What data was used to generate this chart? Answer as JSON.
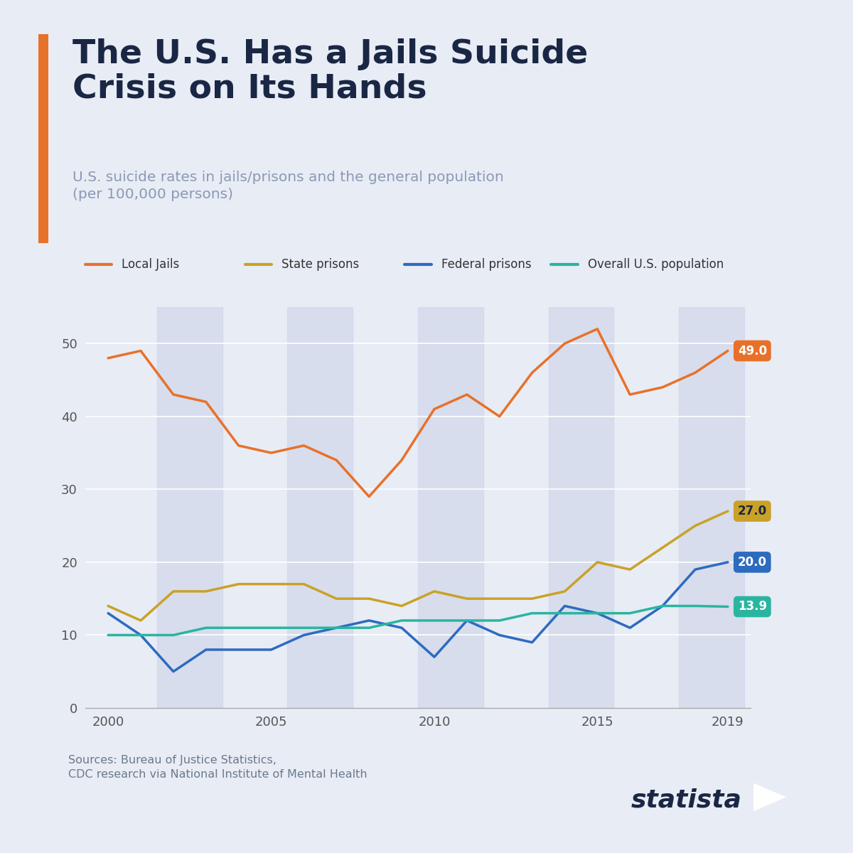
{
  "title": "The U.S. Has a Jails Suicide\nCrisis on Its Hands",
  "subtitle": "U.S. suicide rates in jails/prisons and the general population\n(per 100,000 persons)",
  "background_color": "#e8ecf5",
  "title_color": "#1a2744",
  "subtitle_color": "#8a9ab5",
  "accent_bar_color": "#e8712a",
  "years": [
    2000,
    2001,
    2002,
    2003,
    2004,
    2005,
    2006,
    2007,
    2008,
    2009,
    2010,
    2011,
    2012,
    2013,
    2014,
    2015,
    2016,
    2017,
    2018,
    2019
  ],
  "local_jails": [
    48,
    49,
    43,
    42,
    36,
    35,
    36,
    34,
    29,
    34,
    41,
    43,
    40,
    46,
    50,
    52,
    43,
    44,
    46,
    49
  ],
  "state_prisons": [
    14,
    12,
    16,
    16,
    17,
    17,
    17,
    15,
    15,
    14,
    16,
    15,
    15,
    15,
    16,
    20,
    19,
    22,
    25,
    27
  ],
  "federal_prisons": [
    13,
    10,
    5,
    8,
    8,
    8,
    10,
    11,
    12,
    11,
    7,
    12,
    10,
    9,
    14,
    13,
    11,
    14,
    19,
    20
  ],
  "us_population": [
    10,
    10,
    10,
    11,
    11,
    11,
    11,
    11,
    11,
    12,
    12,
    12,
    12,
    13,
    13,
    13,
    13,
    14,
    14,
    13.9
  ],
  "local_jails_color": "#e8712a",
  "state_prisons_color": "#c9a227",
  "federal_prisons_color": "#2d6bbf",
  "us_population_color": "#2ab5a0",
  "local_jails_label": "Local Jails",
  "state_prisons_label": "State prisons",
  "federal_prisons_label": "Federal prisons",
  "us_population_label": "Overall U.S. population",
  "end_labels": [
    "49.0",
    "27.0",
    "20.0",
    "13.9"
  ],
  "end_label_text_colors": [
    "white",
    "#1a2744",
    "white",
    "white"
  ],
  "ylim": [
    0,
    55
  ],
  "yticks": [
    0,
    10,
    20,
    30,
    40,
    50
  ],
  "xticks": [
    2000,
    2005,
    2010,
    2015,
    2019
  ],
  "source_text": "Sources: Bureau of Justice Statistics,\nCDC research via National Institute of Mental Health",
  "statista_text": "statista",
  "stripe_color": "#d0d7ea",
  "grid_color": "#ffffff",
  "line_width": 2.5
}
